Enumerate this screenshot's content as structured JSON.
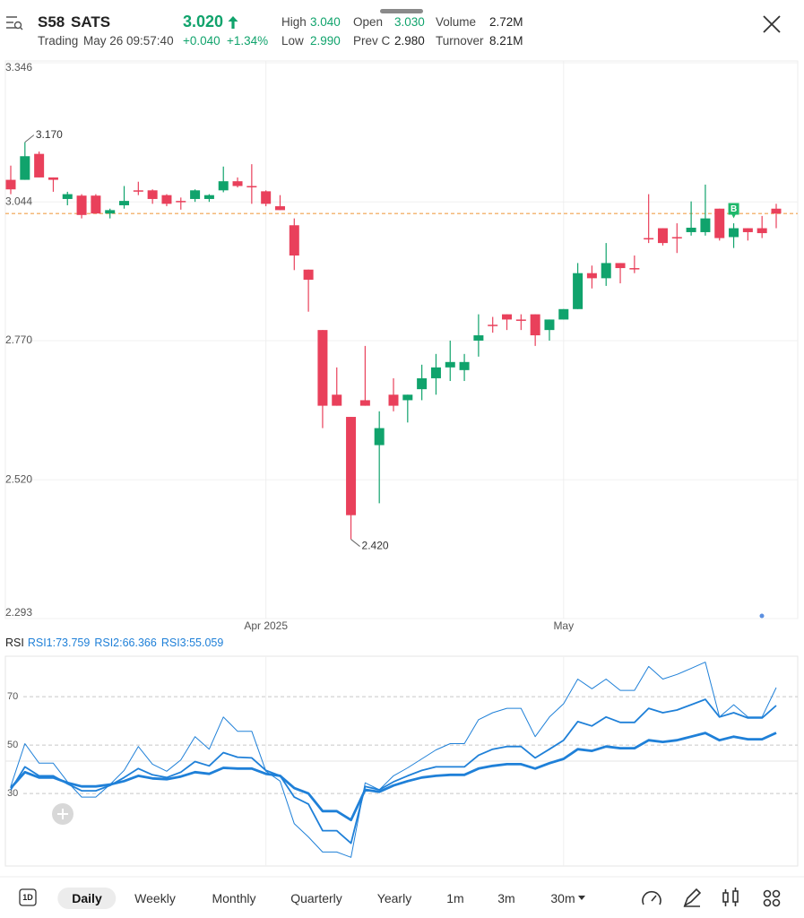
{
  "header": {
    "symbol": "S58",
    "name": "SATS",
    "price": "3.020",
    "status": "Trading",
    "time": "May 26 09:57:40",
    "change": "+0.040",
    "change_percent": "+1.34%",
    "up_color": "#10a36c",
    "stats": [
      {
        "label": "High",
        "value": "3.040",
        "color": "#10a36c"
      },
      {
        "label": "Open",
        "value": "3.030",
        "color": "#10a36c"
      },
      {
        "label": "Volume",
        "value": "2.72M",
        "color": "#222"
      },
      {
        "label": "Low",
        "value": "2.990",
        "color": "#10a36c"
      },
      {
        "label": "Prev C",
        "value": "2.980",
        "color": "#222"
      },
      {
        "label": "Turnover",
        "value": "8.21M",
        "color": "#222"
      }
    ]
  },
  "chart_data": [
    {
      "type": "candlestick",
      "categories": [
        null,
        null,
        null,
        null,
        null,
        null,
        null,
        null,
        null,
        null,
        null,
        null,
        null,
        null,
        null,
        null,
        null,
        null,
        "Apr 2025",
        null,
        null,
        null,
        null,
        null,
        null,
        null,
        null,
        null,
        null,
        null,
        null,
        null,
        null,
        null,
        null,
        null,
        null,
        null,
        null,
        "May",
        null,
        null,
        null,
        null,
        null,
        null,
        null,
        null,
        null,
        null,
        null,
        null,
        null,
        null,
        null
      ],
      "open": [
        3.09,
        3.09,
        3.145,
        3.095,
        3.05,
        3.057,
        3.057,
        3.02,
        3.037,
        3.068,
        3.068,
        3.058,
        3.046,
        3.05,
        3.05,
        3.068,
        3.087,
        3.077,
        3.066,
        3.035,
        2.996,
        2.907,
        2.79,
        2.67,
        2.63,
        2.66,
        2.58,
        2.67,
        2.66,
        2.68,
        2.7,
        2.72,
        2.715,
        2.77,
        2.8,
        2.82,
        2.81,
        2.82,
        2.79,
        2.81,
        2.83,
        2.9,
        2.89,
        2.92,
        2.91,
        2.97,
        2.99,
        2.972,
        2.982,
        2.982,
        3.03,
        2.972,
        2.99,
        2.99,
        3.03
      ],
      "high": [
        3.12,
        3.17,
        3.15,
        3.095,
        3.065,
        3.06,
        3.06,
        3.03,
        3.077,
        3.086,
        3.07,
        3.06,
        3.053,
        3.07,
        3.06,
        3.118,
        3.095,
        3.123,
        3.068,
        3.058,
        3.01,
        2.907,
        2.79,
        2.72,
        2.63,
        2.76,
        2.64,
        2.7,
        2.67,
        2.725,
        2.745,
        2.77,
        2.745,
        2.82,
        2.815,
        2.82,
        2.82,
        2.82,
        2.81,
        2.83,
        2.92,
        2.915,
        2.96,
        2.92,
        2.935,
        3.06,
        2.99,
        3.0,
        3.045,
        3.08,
        3.03,
        3.0,
        2.99,
        3.015,
        3.04
      ],
      "low": [
        3.06,
        3.09,
        3.095,
        3.065,
        3.037,
        3.01,
        3.02,
        3.01,
        3.03,
        3.058,
        3.04,
        3.035,
        3.028,
        3.044,
        3.044,
        3.064,
        3.074,
        3.04,
        3.035,
        3.027,
        2.906,
        2.825,
        2.61,
        2.65,
        2.42,
        2.65,
        2.48,
        2.64,
        2.62,
        2.66,
        2.67,
        2.695,
        2.695,
        2.74,
        2.785,
        2.79,
        2.79,
        2.76,
        2.77,
        2.81,
        2.83,
        2.87,
        2.875,
        2.88,
        2.9,
        2.96,
        2.955,
        2.94,
        2.975,
        2.975,
        2.965,
        2.95,
        2.965,
        2.97,
        2.99
      ],
      "close": [
        3.07,
        3.14,
        3.095,
        3.09,
        3.06,
        3.017,
        3.02,
        3.027,
        3.046,
        3.068,
        3.05,
        3.04,
        3.046,
        3.068,
        3.058,
        3.087,
        3.077,
        3.077,
        3.04,
        3.027,
        2.935,
        2.887,
        2.65,
        2.65,
        2.46,
        2.65,
        2.61,
        2.65,
        2.67,
        2.7,
        2.72,
        2.73,
        2.73,
        2.78,
        2.8,
        2.81,
        2.81,
        2.78,
        2.81,
        2.83,
        2.9,
        2.89,
        2.92,
        2.91,
        2.91,
        2.97,
        2.96,
        2.972,
        2.991,
        3.01,
        2.97,
        2.99,
        2.982,
        2.98,
        3.02
      ],
      "up_color": "#10a36c",
      "down_color": "#e9405b",
      "ylim": [
        2.293,
        3.346
      ],
      "yticks": [
        3.346,
        3.044,
        {
          "value": 2.77,
          "label": "2.770"
        },
        {
          "value": 2.52,
          "label": "2.520"
        },
        2.293
      ],
      "log_scale": true,
      "grid": true,
      "last_price": 3.02,
      "last_price_color": "#f0a04b",
      "annotations": [
        {
          "label": "3.170",
          "value": 3.17,
          "index": 1
        },
        {
          "label": "2.420",
          "value": 2.42,
          "index": 24
        }
      ],
      "markers": [
        {
          "label": "B",
          "index": 51,
          "color": "#1fb86b"
        }
      ]
    },
    {
      "type": "line",
      "title": "RSI",
      "ylim": [
        0,
        86
      ],
      "yticks": [
        30,
        50,
        70
      ],
      "grid": true,
      "series": [
        {
          "name": "RSI1:73.759",
          "color": "#1f80d8",
          "width": 1,
          "values": [
            32.9,
            50.6,
            42.5,
            42.5,
            34.8,
            28.5,
            28.5,
            33.7,
            39.5,
            49.4,
            42.1,
            39.2,
            43.9,
            53.5,
            48.3,
            61.6,
            55.7,
            55.7,
            39.2,
            35.1,
            17.5,
            12.0,
            5.8,
            5.8,
            3.6,
            34.4,
            31.5,
            37.3,
            40.6,
            44.3,
            48.0,
            50.6,
            50.6,
            60.5,
            63.4,
            65.2,
            65.2,
            53.5,
            61.6,
            67.1,
            77.3,
            73.3,
            77.3,
            72.6,
            72.6,
            82.5,
            77.3,
            79.2,
            81.7,
            84.3,
            61.6,
            66.7,
            61.6,
            61.6,
            73.759
          ]
        },
        {
          "name": "RSI2:66.366",
          "color": "#1f80d8",
          "width": 1.8,
          "values": [
            31.5,
            41.0,
            37.3,
            37.3,
            34.0,
            31.1,
            31.1,
            33.3,
            36.6,
            40.3,
            37.7,
            36.6,
            38.8,
            43.2,
            41.4,
            46.9,
            45.0,
            44.7,
            39.5,
            37.3,
            28.5,
            25.6,
            14.6,
            14.6,
            9.4,
            32.9,
            31.5,
            34.8,
            37.3,
            39.5,
            41.0,
            41.0,
            41.0,
            45.8,
            48.3,
            49.4,
            49.4,
            44.7,
            48.3,
            52.0,
            59.7,
            57.9,
            61.6,
            59.4,
            59.4,
            65.2,
            63.4,
            64.5,
            66.7,
            68.9,
            61.6,
            63.4,
            61.2,
            61.2,
            66.366
          ]
        },
        {
          "name": "RSI3:55.059",
          "color": "#1f80d8",
          "width": 2.8,
          "values": [
            32.2,
            38.8,
            36.6,
            36.6,
            34.4,
            32.9,
            32.9,
            33.7,
            35.1,
            37.3,
            36.2,
            35.9,
            37.0,
            38.8,
            38.1,
            40.6,
            40.3,
            40.3,
            38.1,
            37.3,
            32.2,
            30.0,
            22.7,
            22.7,
            19.0,
            31.5,
            30.7,
            33.3,
            35.1,
            36.6,
            37.3,
            37.7,
            37.7,
            40.3,
            41.4,
            42.1,
            42.1,
            40.3,
            42.5,
            44.3,
            48.3,
            47.6,
            49.4,
            48.7,
            48.7,
            52.0,
            51.3,
            52.0,
            53.5,
            55.0,
            52.0,
            53.5,
            52.4,
            52.4,
            55.059
          ]
        }
      ]
    }
  ],
  "toolbar": {
    "badge": "1D",
    "periods": [
      "Daily",
      "Weekly",
      "Monthly",
      "Quarterly",
      "Yearly",
      "1m",
      "3m",
      "30m"
    ],
    "selected": "Daily"
  }
}
